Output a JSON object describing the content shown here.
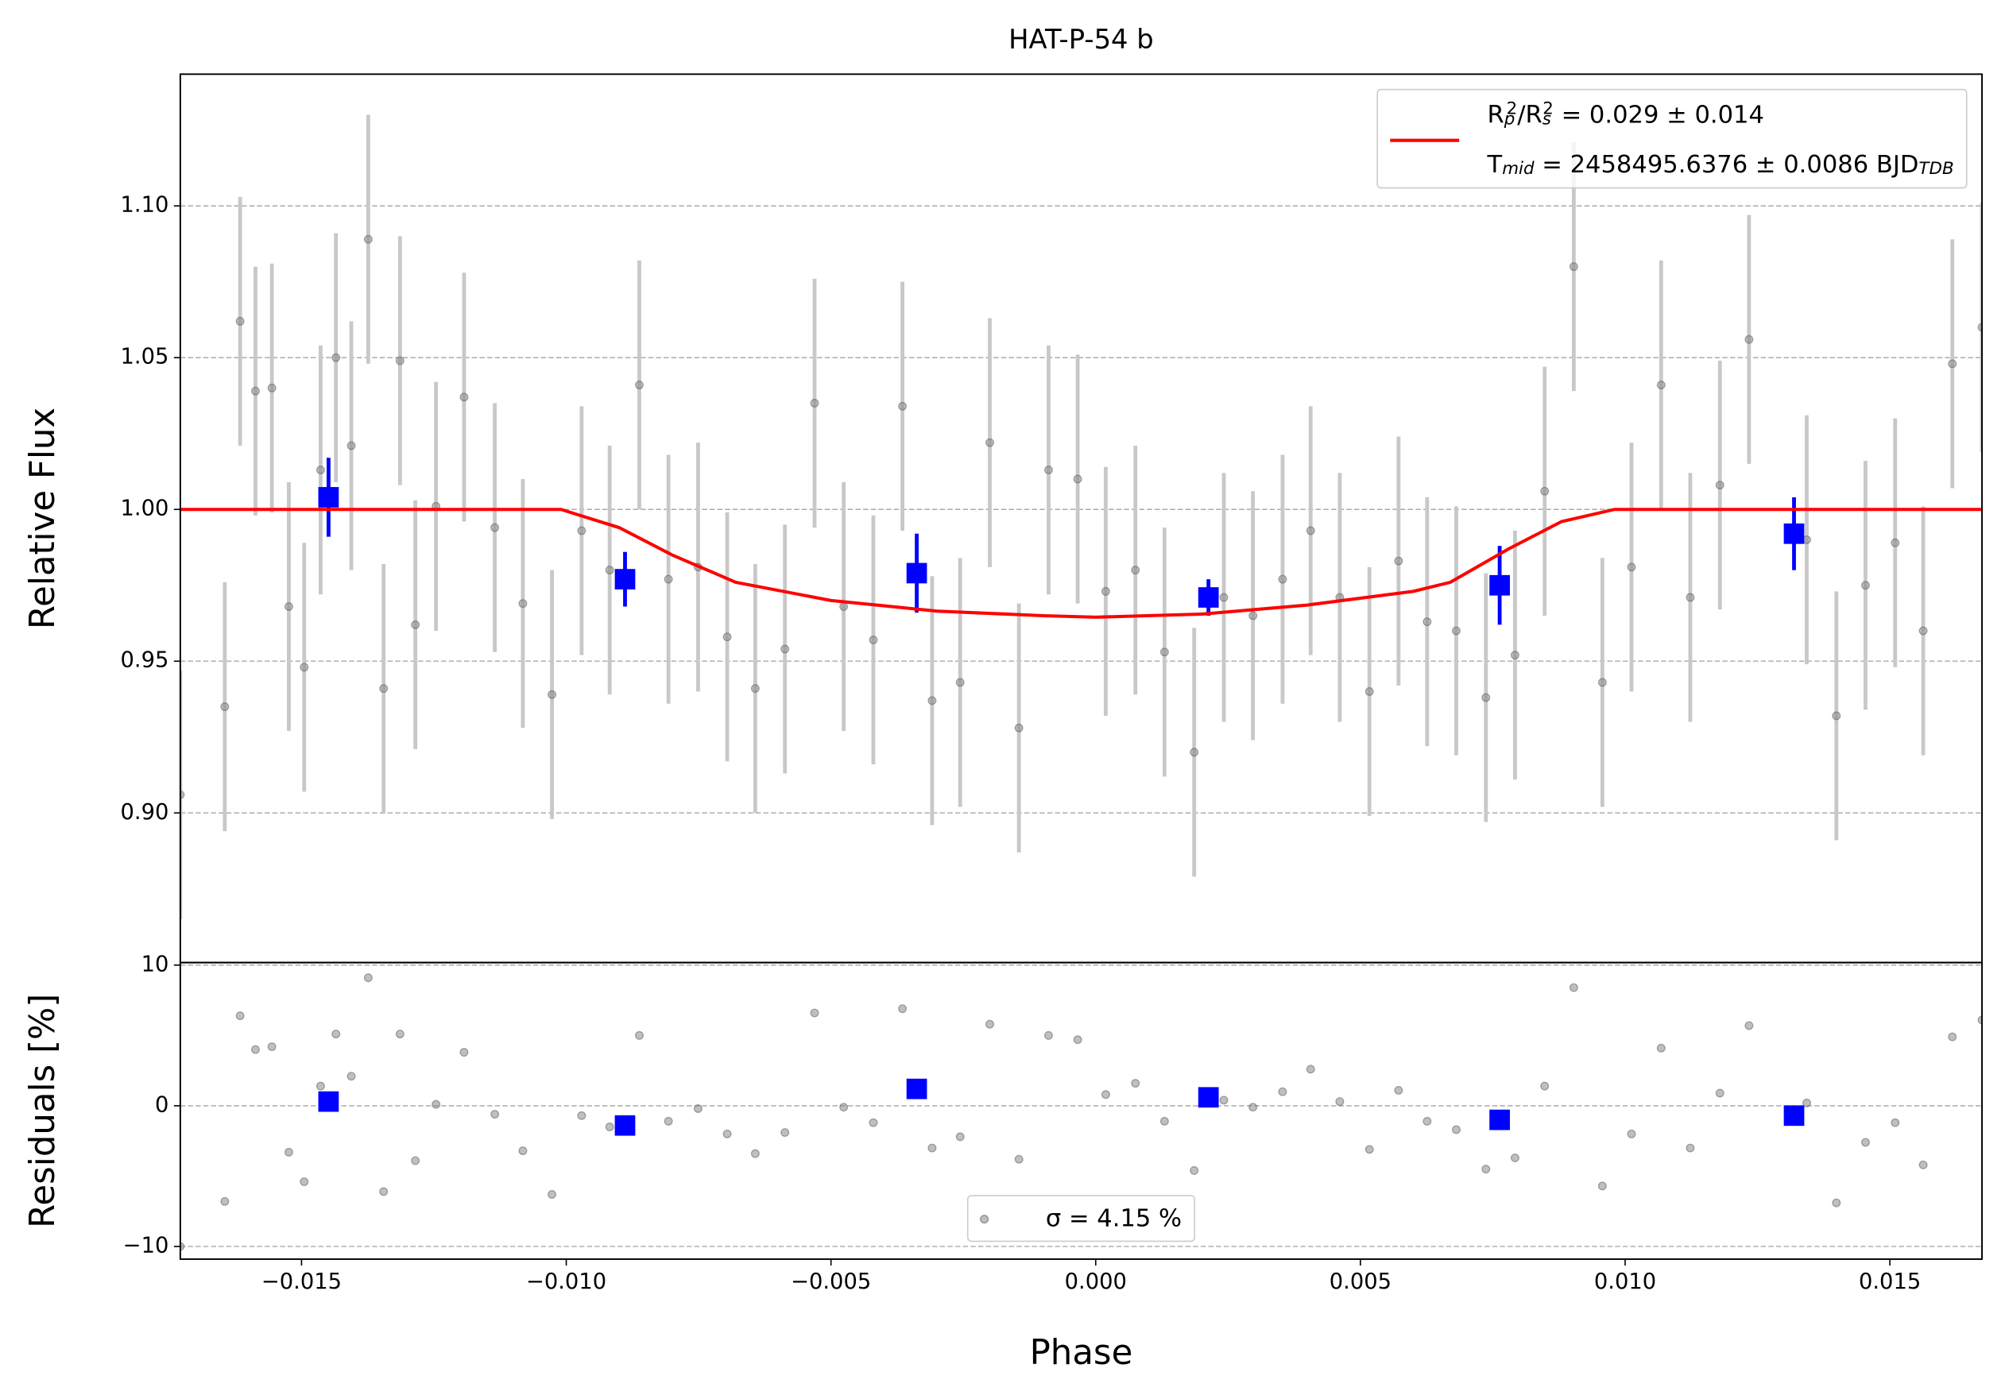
{
  "chart_data": [
    {
      "type": "errorbar",
      "title": "HAT-P-54 b",
      "ylabel": "Relative Flux",
      "xlim": [
        -0.01729,
        0.01674
      ],
      "ylim": [
        0.8507,
        1.1434
      ],
      "yticks": [
        {
          "value": 0.9,
          "label": "0.90"
        },
        {
          "value": 0.95,
          "label": "0.95"
        },
        {
          "value": 1.0,
          "label": "1.00"
        },
        {
          "value": 1.05,
          "label": "1.05"
        },
        {
          "value": 1.1,
          "label": "1.10"
        }
      ],
      "grid": true,
      "legend": "upper right",
      "series": [
        {
          "kind": "points",
          "marker": "circle",
          "color": "#808080",
          "error_color": "#c8c8c8",
          "yerr": 0.041,
          "x": [
            -0.01729,
            -0.01645,
            -0.01616,
            -0.01587,
            -0.01556,
            -0.01524,
            -0.01495,
            -0.01464,
            -0.01435,
            -0.01406,
            -0.01374,
            -0.01345,
            -0.01314,
            -0.01285,
            -0.01246,
            -0.01193,
            -0.01135,
            -0.01082,
            -0.01027,
            -0.00971,
            -0.00918,
            -0.00862,
            -0.00807,
            -0.00751,
            -0.00696,
            -0.00643,
            -0.00587,
            -0.00531,
            -0.00476,
            -0.0042,
            -0.00365,
            -0.00309,
            -0.00256,
            -0.002,
            -0.00145,
            -0.00089,
            -0.00034,
            0.00019,
            0.00075,
            0.0013,
            0.00186,
            0.00242,
            0.00297,
            0.00353,
            0.00406,
            0.00461,
            0.00517,
            0.00572,
            0.00626,
            0.00681,
            0.00737,
            0.00792,
            0.00848,
            0.00903,
            0.00957,
            0.01012,
            0.01068,
            0.01123,
            0.01179,
            0.01234,
            0.01343,
            0.01399,
            0.01454,
            0.0151,
            0.01563,
            0.01618,
            0.01674
          ],
          "values": [
            0.906,
            0.935,
            1.062,
            1.039,
            1.04,
            0.968,
            0.948,
            1.013,
            1.05,
            1.021,
            1.089,
            0.941,
            1.049,
            0.962,
            1.001,
            1.037,
            0.994,
            0.969,
            0.939,
            0.993,
            0.98,
            1.041,
            0.977,
            0.981,
            0.958,
            0.941,
            0.954,
            1.035,
            0.968,
            0.957,
            1.034,
            0.937,
            0.943,
            1.022,
            0.928,
            1.013,
            1.01,
            0.973,
            0.98,
            0.953,
            0.92,
            0.971,
            0.965,
            0.977,
            0.993,
            0.971,
            0.94,
            0.983,
            0.963,
            0.96,
            0.938,
            0.952,
            1.006,
            1.08,
            0.943,
            0.981,
            1.041,
            0.971,
            1.008,
            1.056,
            0.99,
            0.932,
            0.975,
            0.989,
            0.96,
            1.048,
            1.06
          ]
        },
        {
          "kind": "points",
          "marker": "square",
          "color": "#0000ff",
          "error_color": "#0000ff",
          "yerr": [
            0.013,
            0.009,
            0.013,
            0.006,
            0.013,
            0.012
          ],
          "x": [
            -0.01449,
            -0.00889,
            -0.00338,
            0.00213,
            0.00763,
            0.01319
          ],
          "values": [
            1.004,
            0.977,
            0.979,
            0.971,
            0.975,
            0.992
          ]
        },
        {
          "kind": "line",
          "color": "#ff0000",
          "name": [
            [
              {
                "text": "R"
              },
              {
                "sub": "p"
              },
              {
                "sup": "2"
              },
              {
                "text": "/R"
              },
              {
                "sub": "s"
              },
              {
                "sup": "2"
              },
              {
                "text": " = 0.029 ± 0.014"
              }
            ],
            [
              {
                "text": "T"
              },
              {
                "sub": "mid"
              },
              {
                "text": " = 2458495.6376 ± 0.0086 BJD"
              },
              {
                "sub": "TDB"
              }
            ]
          ],
          "x": [
            -0.01729,
            -0.0101,
            -0.009,
            -0.008,
            -0.0068,
            -0.005,
            -0.003,
            -0.001,
            0.0,
            0.002,
            0.004,
            0.006,
            0.0067,
            0.0078,
            0.0088,
            0.0098,
            0.01674
          ],
          "values": [
            1.0,
            1.0,
            0.994,
            0.985,
            0.976,
            0.97,
            0.9665,
            0.965,
            0.9645,
            0.9655,
            0.9685,
            0.973,
            0.976,
            0.987,
            0.996,
            1.0,
            1.0
          ]
        }
      ]
    },
    {
      "type": "errorbar",
      "ylabel": "Residuals [%]",
      "xlabel": "Phase",
      "xlim": [
        -0.01729,
        0.01674
      ],
      "ylim": [
        -10.9,
        10.18
      ],
      "xticks": [
        {
          "value": -0.015,
          "label": "−0.015"
        },
        {
          "value": -0.01,
          "label": "−0.010"
        },
        {
          "value": -0.005,
          "label": "−0.005"
        },
        {
          "value": 0.0,
          "label": "0.000"
        },
        {
          "value": 0.005,
          "label": "0.005"
        },
        {
          "value": 0.01,
          "label": "0.010"
        },
        {
          "value": 0.015,
          "label": "0.015"
        }
      ],
      "yticks": [
        {
          "value": -10,
          "label": "−10"
        },
        0,
        10
      ],
      "grid": true,
      "legend": "lower center",
      "series": [
        {
          "kind": "points",
          "marker": "circle",
          "color": "#808080",
          "name": [
            [
              {
                "text": "σ = 4.15 %"
              }
            ]
          ],
          "x": [
            -0.01729,
            -0.01645,
            -0.01616,
            -0.01587,
            -0.01556,
            -0.01524,
            -0.01495,
            -0.01464,
            -0.01435,
            -0.01406,
            -0.01374,
            -0.01345,
            -0.01314,
            -0.01285,
            -0.01246,
            -0.01193,
            -0.01135,
            -0.01082,
            -0.01027,
            -0.00971,
            -0.00918,
            -0.00862,
            -0.00807,
            -0.00751,
            -0.00696,
            -0.00643,
            -0.00587,
            -0.00531,
            -0.00476,
            -0.0042,
            -0.00365,
            -0.00309,
            -0.00256,
            -0.002,
            -0.00145,
            -0.00089,
            -0.00034,
            0.00019,
            0.00075,
            0.0013,
            0.00186,
            0.00242,
            0.00297,
            0.00353,
            0.00406,
            0.00461,
            0.00517,
            0.00572,
            0.00626,
            0.00681,
            0.00737,
            0.00792,
            0.00848,
            0.00903,
            0.00957,
            0.01012,
            0.01068,
            0.01123,
            0.01179,
            0.01234,
            0.01343,
            0.01399,
            0.01454,
            0.0151,
            0.01563,
            0.01618,
            0.01674
          ],
          "values": [
            -10,
            -6.8,
            6.4,
            4.0,
            4.2,
            -3.3,
            -5.4,
            1.4,
            5.1,
            2.1,
            9.1,
            -6.1,
            5.1,
            -3.9,
            0.1,
            3.8,
            -0.6,
            -3.2,
            -6.3,
            -0.7,
            -1.5,
            5.0,
            -1.1,
            -0.2,
            -2.0,
            -3.4,
            -1.9,
            6.6,
            -0.1,
            -1.2,
            6.9,
            -3.0,
            -2.2,
            5.8,
            -3.8,
            5.0,
            4.7,
            0.8,
            1.6,
            -1.1,
            -4.6,
            0.4,
            -0.1,
            1.0,
            2.6,
            0.3,
            -3.1,
            1.1,
            -1.1,
            -1.7,
            -4.5,
            -3.7,
            1.4,
            8.4,
            -5.7,
            -2.0,
            4.1,
            -3.0,
            0.9,
            5.7,
            0.2,
            -6.9,
            -2.6,
            -1.2,
            -4.2,
            4.9,
            6.1
          ]
        },
        {
          "kind": "points",
          "marker": "square",
          "color": "#0000ff",
          "x": [
            -0.01449,
            -0.00889,
            -0.00338,
            0.00213,
            0.00763,
            0.01319
          ],
          "values": [
            0.3,
            -1.4,
            1.2,
            0.6,
            -1.0,
            -0.7
          ]
        }
      ]
    }
  ]
}
